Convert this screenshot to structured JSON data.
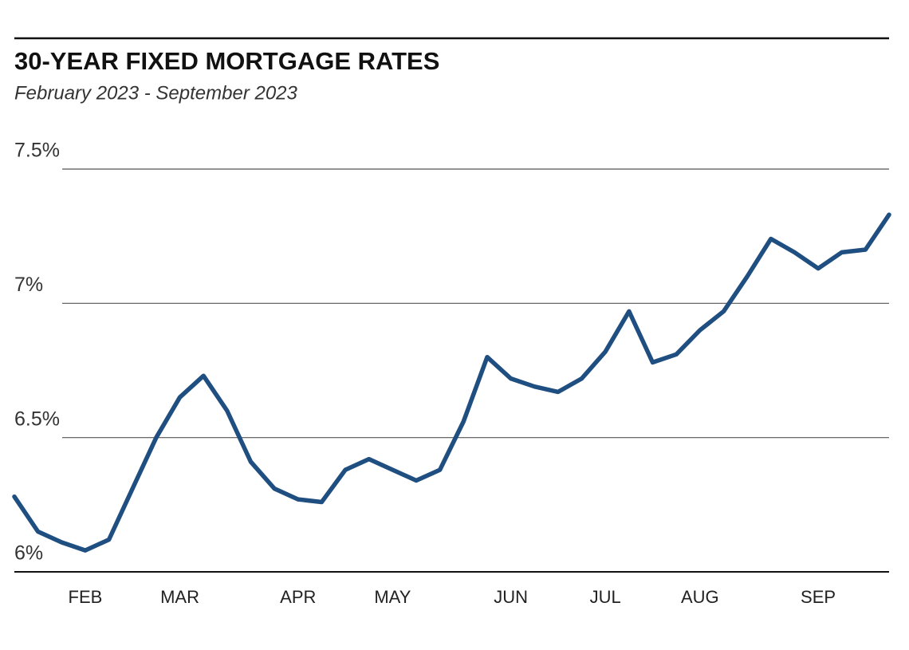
{
  "chart_data": {
    "type": "line",
    "title": "30-YEAR FIXED MORTGAGE RATES",
    "subtitle": "February 2023 - September 2023",
    "categories": [
      null,
      null,
      null,
      "FEB",
      null,
      null,
      null,
      "MAR",
      null,
      null,
      null,
      null,
      "APR",
      null,
      null,
      null,
      "MAY",
      null,
      null,
      null,
      null,
      "JUN",
      null,
      null,
      null,
      "JUL",
      null,
      null,
      null,
      "AUG",
      null,
      null,
      null,
      null,
      "SEP",
      null,
      null,
      null
    ],
    "series": [
      {
        "color": "#1f4e80",
        "values": [
          6.28,
          6.15,
          6.11,
          6.08,
          6.12,
          6.31,
          6.5,
          6.65,
          6.73,
          6.6,
          6.41,
          6.31,
          6.27,
          6.26,
          6.38,
          6.42,
          6.38,
          6.34,
          6.38,
          6.56,
          6.8,
          6.72,
          6.69,
          6.67,
          6.72,
          6.82,
          6.97,
          6.78,
          6.81,
          6.9,
          6.97,
          7.1,
          7.24,
          7.19,
          7.13,
          7.19,
          7.2,
          7.33
        ]
      }
    ],
    "ylim": [
      6,
      7.5
    ],
    "yticks": [
      {
        "value": 6,
        "label": "6%"
      },
      {
        "value": 6.5,
        "label": "6.5%"
      },
      {
        "value": 7,
        "label": "7%"
      },
      {
        "value": 7.5,
        "label": "7.5%"
      }
    ],
    "grid": true
  }
}
